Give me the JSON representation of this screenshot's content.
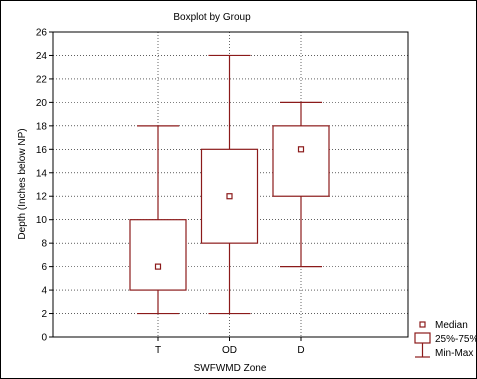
{
  "chart_data": {
    "type": "boxplot",
    "title": "Boxplot by Group",
    "xlabel": "SWFWMD Zone",
    "ylabel": "Depth (Inches below NP)",
    "ylim": [
      0,
      26
    ],
    "yticks": [
      0,
      2,
      4,
      6,
      8,
      10,
      12,
      14,
      16,
      18,
      20,
      22,
      24,
      26
    ],
    "grid": true,
    "categories": [
      "T",
      "OD",
      "D"
    ],
    "series": [
      {
        "category": "T",
        "min": 2,
        "q1": 4,
        "median": 6,
        "q3": 10,
        "max": 18
      },
      {
        "category": "OD",
        "min": 2,
        "q1": 8,
        "median": 12,
        "q3": 16,
        "max": 24
      },
      {
        "category": "D",
        "min": 6,
        "q1": 12,
        "median": 16,
        "q3": 18,
        "max": 20
      }
    ],
    "legend": {
      "placement": "bottom-right",
      "items": [
        {
          "symbol": "median-square",
          "label": "Median"
        },
        {
          "symbol": "box",
          "label": "25%-75%"
        },
        {
          "symbol": "whisker",
          "label": "Min-Max"
        }
      ]
    },
    "colors": {
      "marks": "#8b1a1a",
      "grid": "#000000",
      "frame": "#000000"
    }
  }
}
